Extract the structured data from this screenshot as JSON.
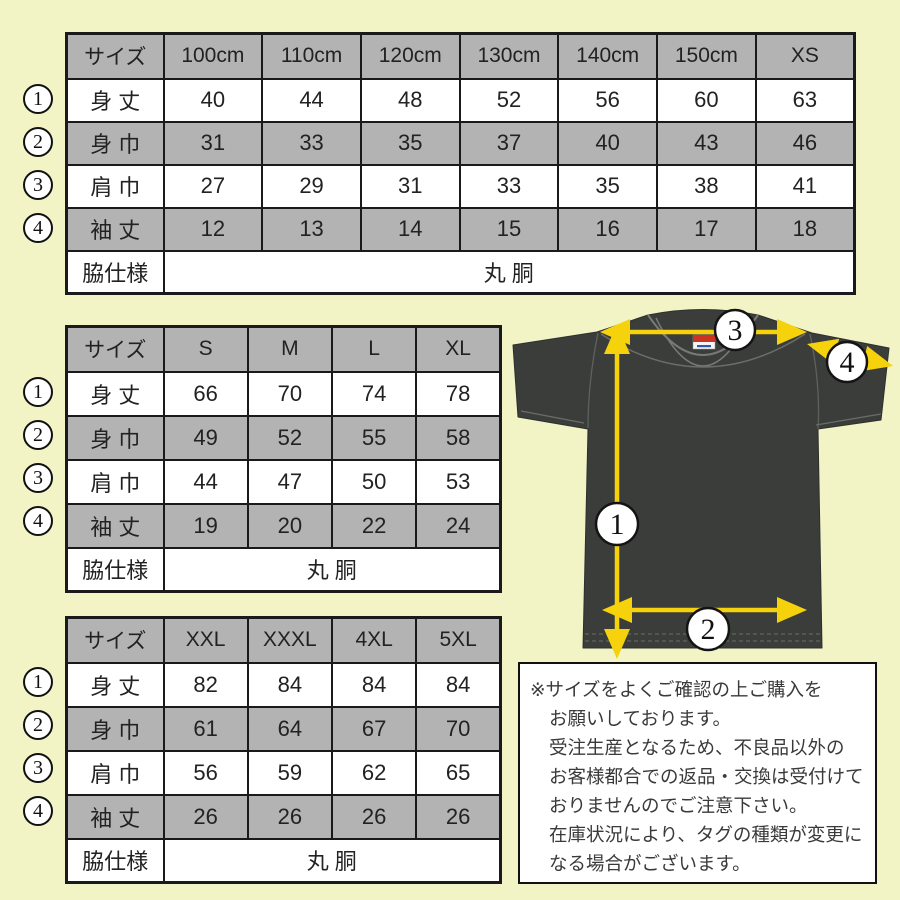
{
  "page": {
    "background_color": "#F3F4C6",
    "table_header_color": "#B3B3B3",
    "shirt_color": "#3A3D3A",
    "arrow_color": "#F5D20B"
  },
  "tables": [
    {
      "name": "kids-sizes",
      "header": [
        "サイズ",
        "100cm",
        "110cm",
        "120cm",
        "130cm",
        "140cm",
        "150cm",
        "XS"
      ],
      "rows": [
        {
          "marker": "1",
          "label": "身 丈",
          "values": [
            "40",
            "44",
            "48",
            "52",
            "56",
            "60",
            "63"
          ]
        },
        {
          "marker": "2",
          "label": "身 巾",
          "values": [
            "31",
            "33",
            "35",
            "37",
            "40",
            "43",
            "46"
          ]
        },
        {
          "marker": "3",
          "label": "肩 巾",
          "values": [
            "27",
            "29",
            "31",
            "33",
            "35",
            "38",
            "41"
          ]
        },
        {
          "marker": "4",
          "label": "袖 丈",
          "values": [
            "12",
            "13",
            "14",
            "15",
            "16",
            "17",
            "18"
          ]
        }
      ],
      "footer": {
        "label": "脇仕様",
        "value": "丸 胴"
      }
    },
    {
      "name": "adult-sizes",
      "header": [
        "サイズ",
        "S",
        "M",
        "L",
        "XL"
      ],
      "rows": [
        {
          "marker": "1",
          "label": "身 丈",
          "values": [
            "66",
            "70",
            "74",
            "78"
          ]
        },
        {
          "marker": "2",
          "label": "身 巾",
          "values": [
            "49",
            "52",
            "55",
            "58"
          ]
        },
        {
          "marker": "3",
          "label": "肩 巾",
          "values": [
            "44",
            "47",
            "50",
            "53"
          ]
        },
        {
          "marker": "4",
          "label": "袖 丈",
          "values": [
            "19",
            "20",
            "22",
            "24"
          ]
        }
      ],
      "footer": {
        "label": "脇仕様",
        "value": "丸 胴"
      }
    },
    {
      "name": "big-sizes",
      "header": [
        "サイズ",
        "XXL",
        "XXXL",
        "4XL",
        "5XL"
      ],
      "rows": [
        {
          "marker": "1",
          "label": "身 丈",
          "values": [
            "82",
            "84",
            "84",
            "84"
          ]
        },
        {
          "marker": "2",
          "label": "身 巾",
          "values": [
            "61",
            "64",
            "67",
            "70"
          ]
        },
        {
          "marker": "3",
          "label": "肩 巾",
          "values": [
            "56",
            "59",
            "62",
            "65"
          ]
        },
        {
          "marker": "4",
          "label": "袖 丈",
          "values": [
            "26",
            "26",
            "26",
            "26"
          ]
        }
      ],
      "footer": {
        "label": "脇仕様",
        "value": "丸 胴"
      }
    }
  ],
  "diagram": {
    "markers": [
      {
        "n": "1"
      },
      {
        "n": "2"
      },
      {
        "n": "3"
      },
      {
        "n": "4"
      }
    ]
  },
  "notice": {
    "lines": [
      "※サイズをよくご確認の上ご購入を",
      "お願いしております。",
      "受注生産となるため、不良品以外の",
      "お客様都合での返品・交換は受付けて",
      "おりませんのでご注意下さい。",
      "在庫状況により、タグの種類が変更に",
      "なる場合がございます。"
    ]
  }
}
